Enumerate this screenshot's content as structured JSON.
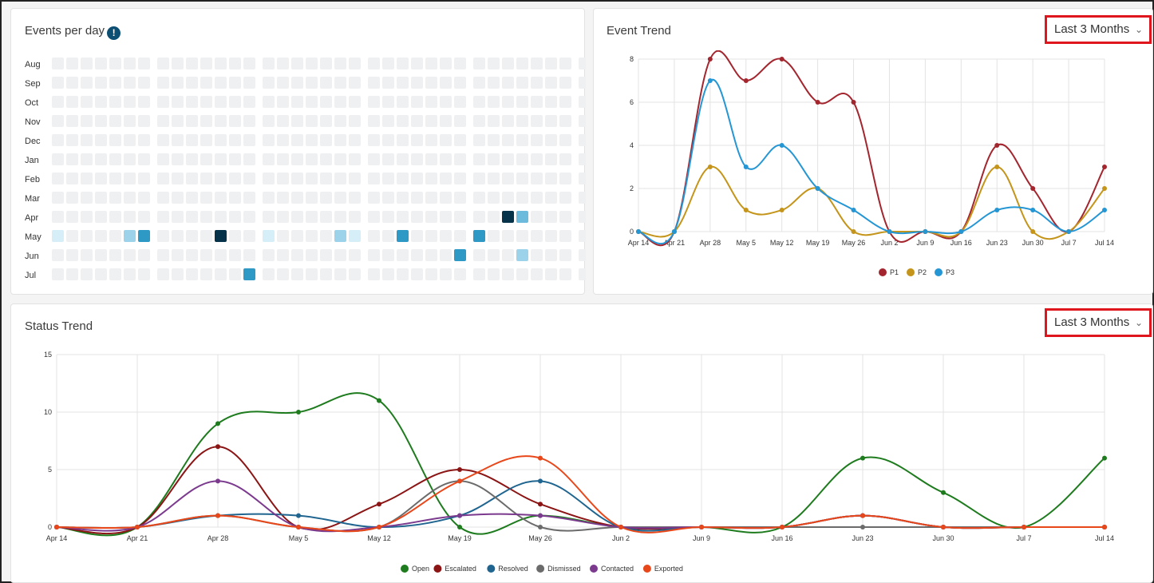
{
  "events_per_day": {
    "title": "Events per day",
    "info_icon": "info-icon",
    "months": [
      "Aug",
      "Sep",
      "Oct",
      "Nov",
      "Dec",
      "Jan",
      "Feb",
      "Mar",
      "Apr",
      "May",
      "Jun",
      "Jul"
    ],
    "highlights": [
      {
        "row": 8,
        "col": 30,
        "level": 5
      },
      {
        "row": 8,
        "col": 31,
        "level": 3
      },
      {
        "row": 9,
        "col": 0,
        "level": 1
      },
      {
        "row": 9,
        "col": 5,
        "level": 2
      },
      {
        "row": 9,
        "col": 6,
        "level": 4
      },
      {
        "row": 9,
        "col": 11,
        "level": 5
      },
      {
        "row": 9,
        "col": 14,
        "level": 1
      },
      {
        "row": 9,
        "col": 19,
        "level": 2
      },
      {
        "row": 9,
        "col": 20,
        "level": 1
      },
      {
        "row": 9,
        "col": 23,
        "level": 4
      },
      {
        "row": 9,
        "col": 28,
        "level": 4
      },
      {
        "row": 10,
        "col": 27,
        "level": 4
      },
      {
        "row": 10,
        "col": 31,
        "level": 2
      },
      {
        "row": 11,
        "col": 13,
        "level": 4
      }
    ],
    "colors": {
      "empty": "#eef0f2",
      "level1": "#d6eef8",
      "level2": "#9dd3ea",
      "level3": "#6cbbdc",
      "level4": "#2f99c6",
      "level5": "#063349"
    }
  },
  "event_trend": {
    "title": "Event Trend",
    "range_label": "Last 3 Months",
    "chart_data": {
      "type": "line",
      "categories": [
        "Apr 14",
        "Apr 21",
        "Apr 28",
        "May 5",
        "May 12",
        "May 19",
        "May 26",
        "Jun 2",
        "Jun 9",
        "Jun 16",
        "Jun 23",
        "Jun 30",
        "Jul 7",
        "Jul 14"
      ],
      "yticks": [
        0,
        2,
        4,
        6,
        8
      ],
      "ylim": [
        0,
        8
      ],
      "series": [
        {
          "name": "P1",
          "color": "#a3262f",
          "values": [
            0,
            0,
            8,
            7,
            8,
            6,
            6,
            0,
            0,
            0,
            4,
            2,
            0,
            3
          ]
        },
        {
          "name": "P2",
          "color": "#c4951a",
          "values": [
            0,
            0,
            3,
            1,
            1,
            2,
            0,
            0,
            0,
            0,
            3,
            0,
            0,
            2
          ]
        },
        {
          "name": "P3",
          "color": "#2596d4",
          "values": [
            0,
            0,
            7,
            3,
            4,
            2,
            1,
            0,
            0,
            0,
            1,
            1,
            0,
            1
          ]
        }
      ],
      "legend": "bottom-center"
    }
  },
  "status_trend": {
    "title": "Status Trend",
    "range_label": "Last 3 Months",
    "chart_data": {
      "type": "line",
      "categories": [
        "Apr 14",
        "Apr 21",
        "Apr 28",
        "May 5",
        "May 12",
        "May 19",
        "May 26",
        "Jun 2",
        "Jun 9",
        "Jun 16",
        "Jun 23",
        "Jun 30",
        "Jul 7",
        "Jul 14"
      ],
      "yticks": [
        0,
        5,
        10,
        15
      ],
      "ylim": [
        0,
        15
      ],
      "series": [
        {
          "name": "Open",
          "color": "#1e7b1e",
          "values": [
            0,
            0,
            9,
            10,
            11,
            0,
            1,
            0,
            0,
            0,
            6,
            3,
            0,
            6
          ]
        },
        {
          "name": "Escalated",
          "color": "#8b1414",
          "values": [
            0,
            0,
            7,
            0,
            2,
            5,
            2,
            0,
            0,
            0,
            1,
            0,
            0,
            0
          ]
        },
        {
          "name": "Resolved",
          "color": "#1f6590",
          "values": [
            0,
            0,
            1,
            1,
            0,
            1,
            4,
            0,
            0,
            0,
            1,
            0,
            0,
            0
          ]
        },
        {
          "name": "Dismissed",
          "color": "#6b6b6b",
          "values": [
            0,
            0,
            1,
            0,
            0,
            4,
            0,
            0,
            0,
            0,
            0,
            0,
            0,
            0
          ]
        },
        {
          "name": "Contacted",
          "color": "#7b3a8e",
          "values": [
            0,
            0,
            4,
            0,
            0,
            1,
            1,
            0,
            0,
            0,
            1,
            0,
            0,
            0
          ]
        },
        {
          "name": "Exported",
          "color": "#e8471a",
          "values": [
            0,
            0,
            1,
            0,
            0,
            4,
            6,
            0,
            0,
            0,
            1,
            0,
            0,
            0
          ]
        }
      ],
      "legend": "bottom-center"
    }
  }
}
